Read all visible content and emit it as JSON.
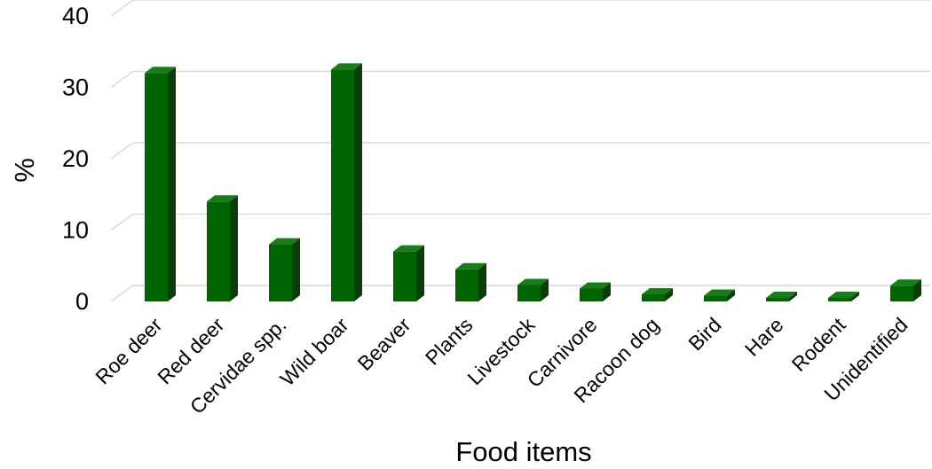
{
  "chart_data": {
    "type": "bar",
    "style": "3d-column",
    "title": "",
    "xlabel": "Food items",
    "ylabel": "%",
    "ylim": [
      0,
      40
    ],
    "yticks": [
      "0",
      "10",
      "20",
      "30",
      "40"
    ],
    "grid": true,
    "legend": "none",
    "categories": [
      "Roe deer",
      "Red deer",
      "Cervidae spp.",
      "Wild boar",
      "Beaver",
      "Plants",
      "Livestock",
      "Carnivore",
      "Racoon dog",
      "Bird",
      "Hare",
      "Rodent",
      "Unidentified"
    ],
    "values": [
      32,
      14,
      8,
      32.5,
      7,
      4.5,
      2.3,
      1.8,
      1,
      0.8,
      0.5,
      0.5,
      2.2
    ],
    "colors": {
      "bar_front": "#006400",
      "bar_side": "#0b3d0b",
      "bar_top": "#1b7a1b",
      "grid": "#d9d9d9"
    }
  }
}
